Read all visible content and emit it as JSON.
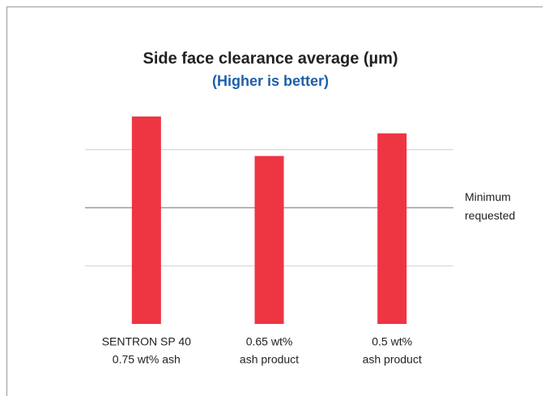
{
  "chart_data": {
    "type": "bar",
    "title": "Side face clearance average (µm)",
    "subtitle": "(Higher is better)",
    "categories": [
      [
        "SENTRON SP 40",
        "0.75 wt% ash"
      ],
      [
        "0.65 wt%",
        "ash product"
      ],
      [
        "0.5 wt%",
        "ash product"
      ]
    ],
    "values": [
      3.57,
      2.89,
      3.28
    ],
    "color": "#ee3542",
    "ylim": [
      0,
      4
    ],
    "yticks": [
      1,
      2,
      3
    ],
    "grid": true,
    "reference_line": {
      "value": 2,
      "label": [
        "Minimum",
        "requested"
      ]
    }
  }
}
